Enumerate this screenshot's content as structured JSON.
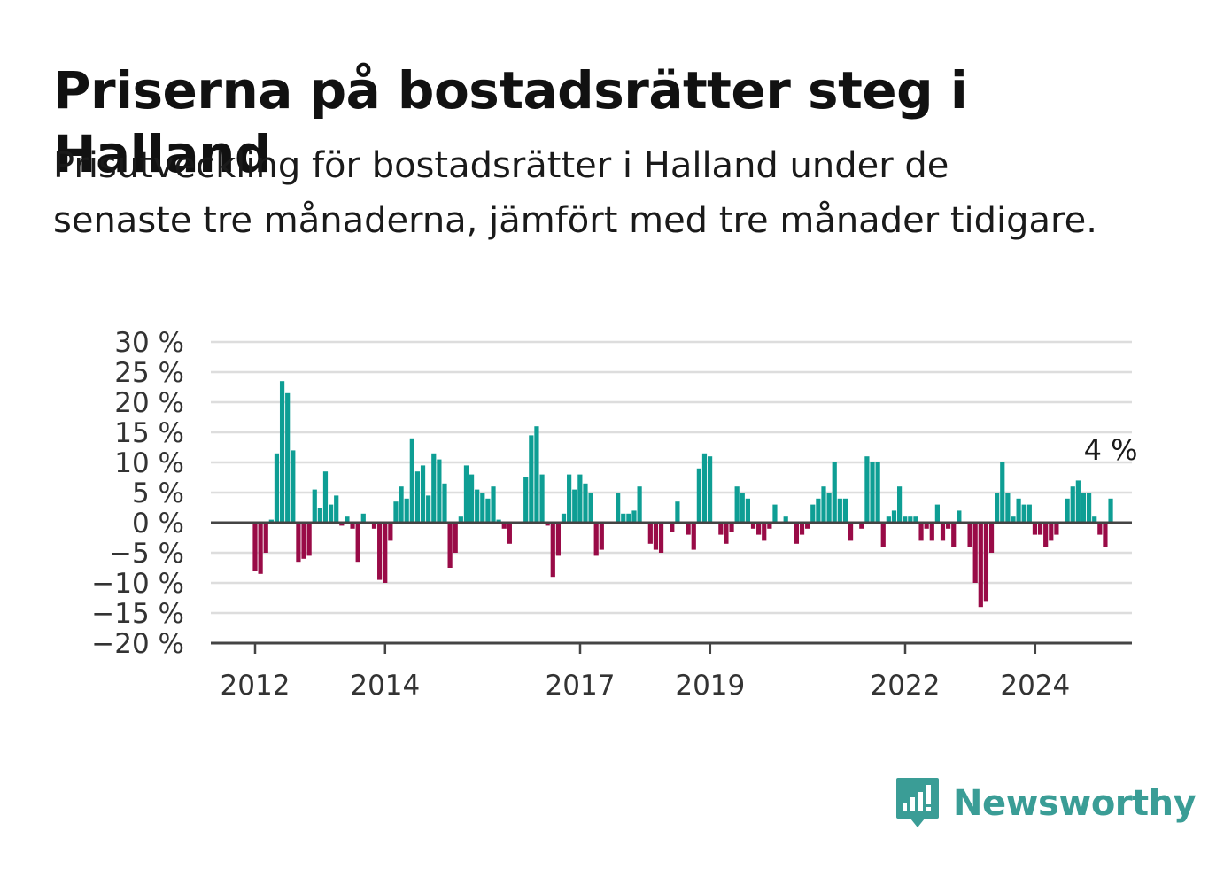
{
  "header": {
    "title": "Priserna på bostadsrätter steg i Halland",
    "subtitle": "Prisutveckling för bostadsrätter i Halland under de senaste tre månaderna, jämfört med tre månader tidigare."
  },
  "brand": {
    "name": "Newsworthy",
    "icon": "newsworthy-logo-icon"
  },
  "colors": {
    "positive": "#0e9e94",
    "negative": "#990b47",
    "grid": "#dddddd",
    "axis": "#444444"
  },
  "chart_data": {
    "type": "bar",
    "x_start": 2012.0,
    "x_step": 0.0833,
    "values": [
      -8,
      -8.5,
      -5,
      0.5,
      11.5,
      23.5,
      21.5,
      12,
      -6.5,
      -6,
      -5.5,
      5.5,
      2.5,
      8.5,
      3,
      4.5,
      -0.5,
      1,
      -1,
      -6.5,
      1.5,
      0,
      -1,
      -9.5,
      -10,
      -3,
      3.5,
      6,
      4,
      14,
      8.5,
      9.5,
      4.5,
      11.5,
      10.5,
      6.5,
      -7.5,
      -5,
      1,
      9.5,
      8,
      5.5,
      5,
      4,
      6,
      0.5,
      -1,
      -3.5,
      0,
      0,
      7.5,
      14.5,
      16,
      8,
      -0.5,
      -9,
      -5.5,
      1.5,
      8,
      5.5,
      8,
      6.5,
      5,
      -5.5,
      -4.5,
      0,
      0,
      5,
      1.5,
      1.5,
      2,
      6,
      0,
      -3.5,
      -4.5,
      -5,
      0,
      -1.5,
      3.5,
      0,
      -2,
      -4.5,
      9,
      11.5,
      11,
      0,
      -2,
      -3.5,
      -1.5,
      6,
      5,
      4,
      -1,
      -2,
      -3,
      -1,
      3,
      0,
      1,
      0,
      -3.5,
      -2,
      -1,
      3,
      4,
      6,
      5,
      10,
      4,
      4,
      -3,
      0,
      -1,
      11,
      10,
      10,
      -4,
      1,
      2,
      6,
      1,
      1,
      1,
      -3,
      -1,
      -3,
      3,
      -3,
      -1,
      -4,
      2,
      0,
      -4,
      -10,
      -14,
      -13,
      -5,
      5,
      10,
      5,
      1,
      4,
      3,
      3,
      -2,
      -2,
      -4,
      -3,
      -2,
      0,
      4,
      6,
      7,
      5,
      5,
      1,
      -2,
      -4,
      4
    ],
    "ylim": [
      -20,
      30
    ],
    "yticks": [
      30,
      25,
      20,
      15,
      10,
      5,
      0,
      -5,
      -10,
      -15,
      -20
    ],
    "ytick_labels": [
      "30 %",
      "25 %",
      "20 %",
      "15 %",
      "10 %",
      "5 %",
      "0 %",
      "−5 %",
      "−10 %",
      "−15 %",
      "−20 %"
    ],
    "xticks": [
      2012,
      2014,
      2017,
      2019,
      2022,
      2024
    ],
    "xtick_labels": [
      "2012",
      "2014",
      "2017",
      "2019",
      "2022",
      "2024"
    ],
    "annotation": {
      "text": "4 %",
      "value": 4
    },
    "grid": true,
    "legend": "none"
  }
}
